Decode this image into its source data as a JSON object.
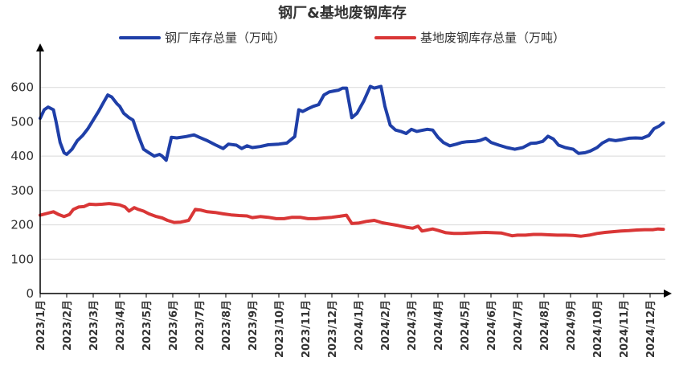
{
  "chart_data": {
    "type": "line",
    "title": "钢厂&基地废钢库存",
    "xlabel": "",
    "ylabel": "",
    "ylim": [
      0,
      700
    ],
    "yticks": [
      0,
      100,
      200,
      300,
      400,
      500,
      600
    ],
    "x_ticks": [
      "2023/1月",
      "2023/2月",
      "2023/3月",
      "2023/4月",
      "2023/5月",
      "2023/6月",
      "2023/7月",
      "2023/8月",
      "2023/9月",
      "2023/10月",
      "2023/11月",
      "2023/12月",
      "2024/1月",
      "2024/2月",
      "2024/3月",
      "2024/4月",
      "2024/5月",
      "2024/6月",
      "2024/7月",
      "2024/8月",
      "2024/9月",
      "2024/10月",
      "2024/11月",
      "2024/12月"
    ],
    "x_unit": "month index (0 = 2023/1月)",
    "xlim": [
      0,
      23.6
    ],
    "grid": true,
    "legend_position": "top",
    "series": [
      {
        "name": "钢厂库存总量（万吨）",
        "color": "#1f3fa8",
        "points": [
          [
            0,
            510
          ],
          [
            0.15,
            535
          ],
          [
            0.3,
            543
          ],
          [
            0.5,
            535
          ],
          [
            0.6,
            500
          ],
          [
            0.75,
            440
          ],
          [
            0.9,
            410
          ],
          [
            1.0,
            405
          ],
          [
            1.2,
            420
          ],
          [
            1.4,
            445
          ],
          [
            1.6,
            460
          ],
          [
            1.8,
            480
          ],
          [
            2.0,
            505
          ],
          [
            2.2,
            530
          ],
          [
            2.4,
            558
          ],
          [
            2.55,
            578
          ],
          [
            2.7,
            572
          ],
          [
            2.9,
            552
          ],
          [
            3.0,
            545
          ],
          [
            3.15,
            525
          ],
          [
            3.35,
            512
          ],
          [
            3.5,
            505
          ],
          [
            3.7,
            460
          ],
          [
            3.9,
            420
          ],
          [
            4.1,
            410
          ],
          [
            4.3,
            400
          ],
          [
            4.5,
            405
          ],
          [
            4.6,
            400
          ],
          [
            4.75,
            388
          ],
          [
            4.95,
            455
          ],
          [
            5.15,
            453
          ],
          [
            5.5,
            457
          ],
          [
            5.8,
            462
          ],
          [
            6.0,
            455
          ],
          [
            6.3,
            445
          ],
          [
            6.6,
            433
          ],
          [
            6.9,
            422
          ],
          [
            7.1,
            435
          ],
          [
            7.4,
            432
          ],
          [
            7.6,
            422
          ],
          [
            7.8,
            430
          ],
          [
            8.0,
            425
          ],
          [
            8.3,
            428
          ],
          [
            8.6,
            433
          ],
          [
            9.0,
            435
          ],
          [
            9.3,
            438
          ],
          [
            9.6,
            457
          ],
          [
            9.75,
            535
          ],
          [
            9.9,
            530
          ],
          [
            10.1,
            538
          ],
          [
            10.3,
            545
          ],
          [
            10.5,
            550
          ],
          [
            10.7,
            578
          ],
          [
            10.9,
            587
          ],
          [
            11.1,
            590
          ],
          [
            11.25,
            592
          ],
          [
            11.4,
            598
          ],
          [
            11.55,
            598
          ],
          [
            11.75,
            512
          ],
          [
            11.95,
            525
          ],
          [
            12.2,
            560
          ],
          [
            12.45,
            603
          ],
          [
            12.6,
            598
          ],
          [
            12.85,
            603
          ],
          [
            13.0,
            545
          ],
          [
            13.2,
            490
          ],
          [
            13.4,
            476
          ],
          [
            13.6,
            472
          ],
          [
            13.8,
            466
          ],
          [
            14.0,
            478
          ],
          [
            14.2,
            472
          ],
          [
            14.4,
            475
          ],
          [
            14.6,
            478
          ],
          [
            14.8,
            476
          ],
          [
            15.0,
            455
          ],
          [
            15.2,
            440
          ],
          [
            15.45,
            430
          ],
          [
            15.7,
            435
          ],
          [
            15.9,
            440
          ],
          [
            16.1,
            442
          ],
          [
            16.4,
            443
          ],
          [
            16.6,
            446
          ],
          [
            16.8,
            452
          ],
          [
            17.0,
            440
          ],
          [
            17.3,
            432
          ],
          [
            17.6,
            425
          ],
          [
            17.9,
            420
          ],
          [
            18.2,
            425
          ],
          [
            18.5,
            437
          ],
          [
            18.7,
            438
          ],
          [
            18.95,
            443
          ],
          [
            19.15,
            458
          ],
          [
            19.35,
            450
          ],
          [
            19.55,
            432
          ],
          [
            19.8,
            425
          ],
          [
            20.1,
            420
          ],
          [
            20.3,
            408
          ],
          [
            20.55,
            410
          ],
          [
            20.75,
            415
          ],
          [
            21.0,
            425
          ],
          [
            21.2,
            438
          ],
          [
            21.45,
            448
          ],
          [
            21.7,
            445
          ],
          [
            21.95,
            448
          ],
          [
            22.2,
            452
          ],
          [
            22.45,
            453
          ],
          [
            22.7,
            452
          ],
          [
            22.95,
            460
          ],
          [
            23.15,
            480
          ],
          [
            23.35,
            488
          ],
          [
            23.5,
            497
          ]
        ]
      },
      {
        "name": "基地废钢库存总量（万吨）",
        "color": "#d93636",
        "points": [
          [
            0,
            228
          ],
          [
            0.3,
            234
          ],
          [
            0.5,
            238
          ],
          [
            0.7,
            230
          ],
          [
            0.9,
            224
          ],
          [
            1.1,
            230
          ],
          [
            1.25,
            245
          ],
          [
            1.45,
            252
          ],
          [
            1.65,
            253
          ],
          [
            1.85,
            260
          ],
          [
            2.1,
            259
          ],
          [
            2.35,
            260
          ],
          [
            2.6,
            262
          ],
          [
            2.8,
            260
          ],
          [
            3.0,
            258
          ],
          [
            3.2,
            252
          ],
          [
            3.35,
            240
          ],
          [
            3.55,
            250
          ],
          [
            3.7,
            245
          ],
          [
            3.9,
            240
          ],
          [
            4.1,
            232
          ],
          [
            4.35,
            225
          ],
          [
            4.6,
            220
          ],
          [
            4.8,
            213
          ],
          [
            5.05,
            207
          ],
          [
            5.3,
            208
          ],
          [
            5.6,
            213
          ],
          [
            5.85,
            245
          ],
          [
            6.05,
            243
          ],
          [
            6.3,
            238
          ],
          [
            6.6,
            236
          ],
          [
            6.9,
            232
          ],
          [
            7.2,
            229
          ],
          [
            7.5,
            227
          ],
          [
            7.8,
            226
          ],
          [
            8.0,
            221
          ],
          [
            8.3,
            224
          ],
          [
            8.6,
            222
          ],
          [
            8.9,
            218
          ],
          [
            9.2,
            218
          ],
          [
            9.5,
            222
          ],
          [
            9.8,
            222
          ],
          [
            10.1,
            218
          ],
          [
            10.4,
            218
          ],
          [
            10.7,
            220
          ],
          [
            11.0,
            222
          ],
          [
            11.3,
            225
          ],
          [
            11.55,
            228
          ],
          [
            11.75,
            204
          ],
          [
            12.0,
            205
          ],
          [
            12.3,
            210
          ],
          [
            12.6,
            213
          ],
          [
            12.9,
            206
          ],
          [
            13.2,
            202
          ],
          [
            13.5,
            198
          ],
          [
            13.8,
            193
          ],
          [
            14.05,
            190
          ],
          [
            14.25,
            196
          ],
          [
            14.4,
            182
          ],
          [
            14.6,
            185
          ],
          [
            14.8,
            188
          ],
          [
            15.0,
            184
          ],
          [
            15.3,
            177
          ],
          [
            15.6,
            175
          ],
          [
            15.9,
            175
          ],
          [
            16.2,
            176
          ],
          [
            16.5,
            177
          ],
          [
            16.8,
            178
          ],
          [
            17.1,
            177
          ],
          [
            17.4,
            176
          ],
          [
            17.6,
            172
          ],
          [
            17.8,
            168
          ],
          [
            18.0,
            170
          ],
          [
            18.3,
            170
          ],
          [
            18.6,
            172
          ],
          [
            18.9,
            172
          ],
          [
            19.2,
            171
          ],
          [
            19.5,
            170
          ],
          [
            19.8,
            170
          ],
          [
            20.1,
            169
          ],
          [
            20.4,
            167
          ],
          [
            20.7,
            170
          ],
          [
            21.0,
            175
          ],
          [
            21.3,
            178
          ],
          [
            21.6,
            180
          ],
          [
            21.9,
            182
          ],
          [
            22.2,
            183
          ],
          [
            22.5,
            185
          ],
          [
            22.8,
            186
          ],
          [
            23.1,
            186
          ],
          [
            23.3,
            188
          ],
          [
            23.5,
            187
          ]
        ]
      }
    ]
  }
}
